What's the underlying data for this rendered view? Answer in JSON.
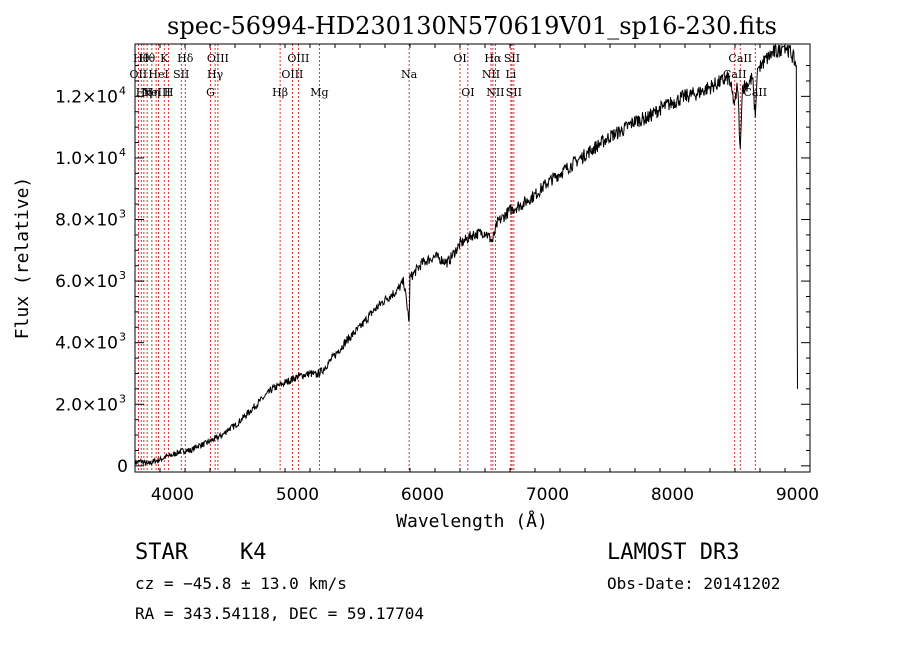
{
  "chart_data": {
    "type": "line",
    "title": "spec-56994-HD230130N570619V01_sp16-230.fits",
    "xlabel": "Wavelength (Å)",
    "ylabel": "Flux (relative)",
    "xlim": [
      3700,
      9100
    ],
    "ylim": [
      -200,
      13700
    ],
    "xticks": [
      {
        "value": 4000,
        "label": "4000"
      },
      {
        "value": 5000,
        "label": "5000"
      },
      {
        "value": 6000,
        "label": "6000"
      },
      {
        "value": 7000,
        "label": "7000"
      },
      {
        "value": 8000,
        "label": "8000"
      },
      {
        "value": 9000,
        "label": "9000"
      }
    ],
    "yticks": [
      {
        "value": 0,
        "mant": "0",
        "exp": ""
      },
      {
        "value": 2000,
        "mant": "2.0×10",
        "exp": "3"
      },
      {
        "value": 4000,
        "mant": "4.0×10",
        "exp": "3"
      },
      {
        "value": 6000,
        "mant": "6.0×10",
        "exp": "3"
      },
      {
        "value": 8000,
        "mant": "8.0×10",
        "exp": "3"
      },
      {
        "value": 10000,
        "mant": "1.0×10",
        "exp": "4"
      },
      {
        "value": 12000,
        "mant": "1.2×10",
        "exp": "4"
      }
    ],
    "series": [
      {
        "name": "flux",
        "x": [
          3700,
          3750,
          3800,
          3850,
          3900,
          3950,
          4000,
          4050,
          4100,
          4150,
          4200,
          4250,
          4300,
          4350,
          4400,
          4450,
          4500,
          4600,
          4700,
          4800,
          4900,
          5000,
          5100,
          5150,
          5200,
          5300,
          5400,
          5500,
          5600,
          5700,
          5800,
          5850,
          5893,
          5900,
          6000,
          6100,
          6200,
          6300,
          6400,
          6500,
          6560,
          6600,
          6700,
          6800,
          6900,
          7000,
          7100,
          7200,
          7300,
          7400,
          7500,
          7600,
          7700,
          7800,
          7900,
          8000,
          8100,
          8200,
          8300,
          8400,
          8450,
          8498,
          8520,
          8542,
          8560,
          8600,
          8640,
          8662,
          8680,
          8700,
          8750,
          8800,
          8850,
          8880,
          8900,
          8950,
          8990,
          9000
        ],
        "y": [
          100,
          150,
          50,
          150,
          200,
          300,
          350,
          450,
          500,
          500,
          650,
          700,
          800,
          900,
          1000,
          1200,
          1300,
          1700,
          2100,
          2500,
          2700,
          2900,
          3000,
          2950,
          3100,
          3600,
          4100,
          4500,
          5000,
          5400,
          5700,
          6000,
          4700,
          6100,
          6600,
          6800,
          6600,
          7200,
          7500,
          7600,
          7300,
          7900,
          8300,
          8500,
          8800,
          9200,
          9500,
          9800,
          10100,
          10400,
          10700,
          10900,
          11200,
          11300,
          11600,
          11800,
          12000,
          12100,
          12300,
          12500,
          12600,
          11700,
          12400,
          10300,
          12300,
          12400,
          12600,
          11300,
          12900,
          13000,
          13200,
          13400,
          13500,
          13600,
          13650,
          13400,
          13000,
          2500
        ]
      }
    ],
    "lines": [
      {
        "wl": 3727,
        "label": "OII",
        "row": 2
      },
      {
        "wl": 3750,
        "label": "Hθ",
        "row": 1
      },
      {
        "wl": 3771,
        "label": "Hη",
        "row": 3
      },
      {
        "wl": 3797,
        "label": "Hθ",
        "row": 1
      },
      {
        "wl": 3835,
        "label": "Hη",
        "row": 3
      },
      {
        "wl": 3869,
        "label": "NeIII",
        "row": 3
      },
      {
        "wl": 3889,
        "label": "HeI",
        "row": 2
      },
      {
        "wl": 3934,
        "label": "K",
        "row": 1
      },
      {
        "wl": 3969,
        "label": "H",
        "row": 3
      },
      {
        "wl": 4070,
        "label": "SII",
        "row": 2
      },
      {
        "wl": 4102,
        "label": "Hδ",
        "row": 1
      },
      {
        "wl": 4304,
        "label": "G",
        "row": 3
      },
      {
        "wl": 4341,
        "label": "Hγ",
        "row": 2
      },
      {
        "wl": 4363,
        "label": "OIII",
        "row": 1
      },
      {
        "wl": 4861,
        "label": "Hβ",
        "row": 3
      },
      {
        "wl": 4959,
        "label": "OIII",
        "row": 2
      },
      {
        "wl": 5007,
        "label": "OIII",
        "row": 1
      },
      {
        "wl": 5175,
        "label": "Mg",
        "row": 3
      },
      {
        "wl": 5893,
        "label": "Na",
        "row": 2
      },
      {
        "wl": 6300,
        "label": "OI",
        "row": 1
      },
      {
        "wl": 6363,
        "label": "OI",
        "row": 3
      },
      {
        "wl": 6548,
        "label": "NII",
        "row": 2
      },
      {
        "wl": 6563,
        "label": "Hα",
        "row": 1
      },
      {
        "wl": 6583,
        "label": "NII",
        "row": 3
      },
      {
        "wl": 6707,
        "label": "Li",
        "row": 2
      },
      {
        "wl": 6716,
        "label": "SII",
        "row": 1
      },
      {
        "wl": 6731,
        "label": "SII",
        "row": 3
      },
      {
        "wl": 8498,
        "label": "CaII",
        "row": 2
      },
      {
        "wl": 8542,
        "label": "CaII",
        "row": 1
      },
      {
        "wl": 8662,
        "label": "CaII",
        "row": 3
      }
    ]
  },
  "info": {
    "class": "STAR",
    "subclass": "K4",
    "survey": "LAMOST DR3",
    "cz": "cz = −45.8 ± 13.0 km/s",
    "obs_date": "Obs-Date: 20141202",
    "radec": "RA = 343.54118, DEC =  59.17704"
  }
}
